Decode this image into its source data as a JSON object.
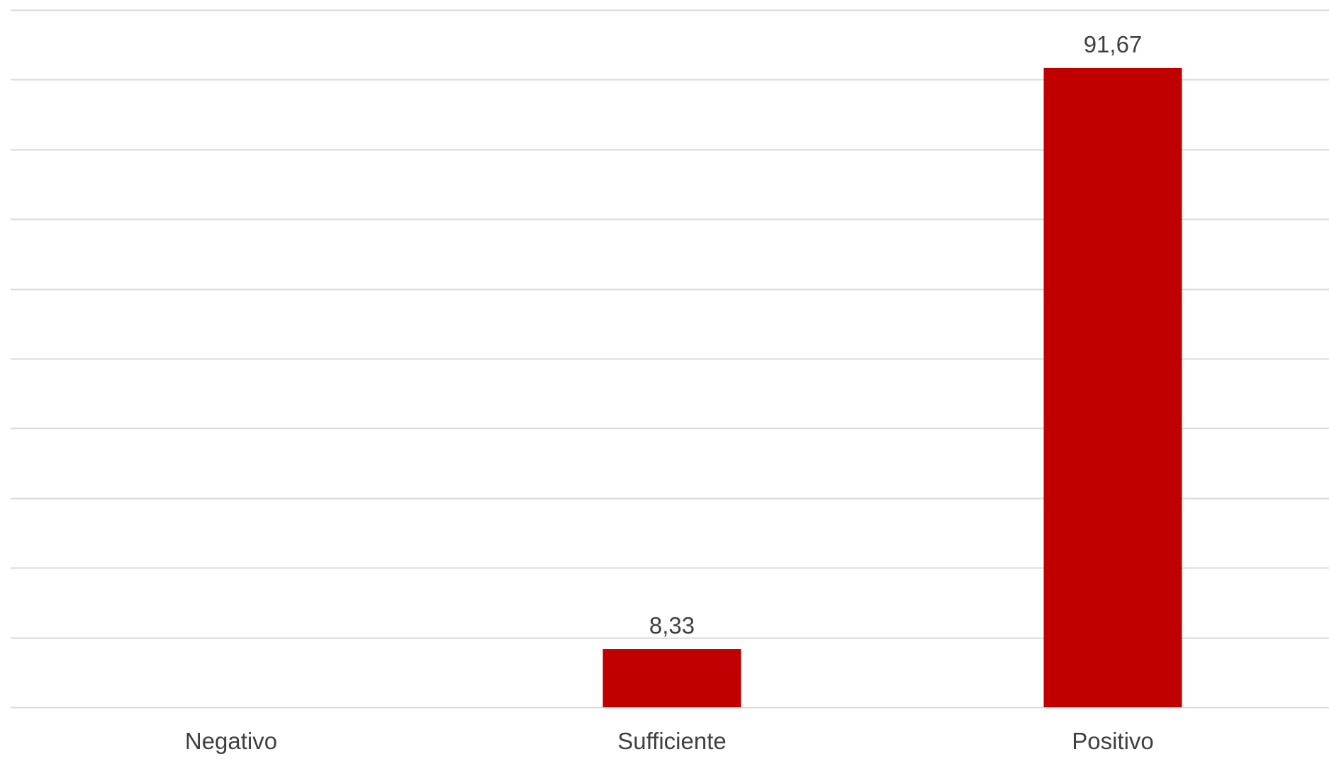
{
  "chart_data": {
    "type": "bar",
    "categories": [
      "Negativo",
      "Sufficiente",
      "Positivo"
    ],
    "values": [
      0,
      8.33,
      91.67
    ],
    "data_labels": [
      "",
      "8,33",
      "91,67"
    ],
    "ylim": [
      0,
      100
    ],
    "y_gridline_step": 10,
    "grid": true,
    "legend": "none",
    "title": "",
    "xlabel": "",
    "ylabel": "",
    "colors": {
      "bar": "#C00000",
      "gridline": "#D9D9D9",
      "text": "#404040"
    }
  }
}
